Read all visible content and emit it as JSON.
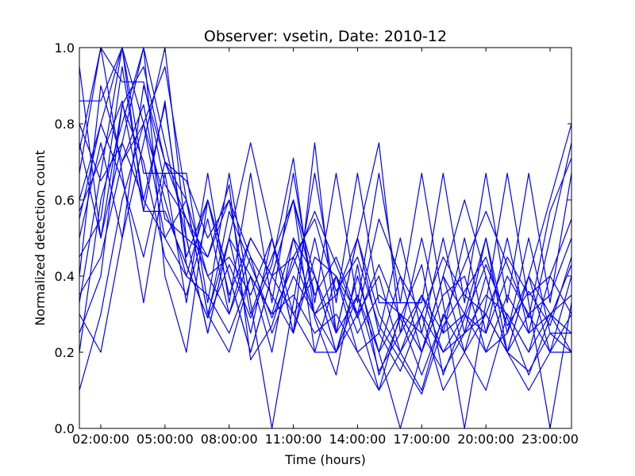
{
  "chart_data": {
    "type": "line",
    "title": "Observer: vsetin, Date: 2010-12",
    "xlabel": "Time (hours)",
    "ylabel": "Normalized detection count",
    "xlim": [
      1,
      24
    ],
    "ylim": [
      0.0,
      1.0
    ],
    "xticks": [
      {
        "value": 2,
        "label": "02:00:00"
      },
      {
        "value": 5,
        "label": "05:00:00"
      },
      {
        "value": 8,
        "label": "08:00:00"
      },
      {
        "value": 11,
        "label": "11:00:00"
      },
      {
        "value": 14,
        "label": "14:00:00"
      },
      {
        "value": 17,
        "label": "17:00:00"
      },
      {
        "value": 20,
        "label": "20:00:00"
      },
      {
        "value": 23,
        "label": "23:00:00"
      }
    ],
    "yticks": [
      {
        "value": 0.0,
        "label": "0.0"
      },
      {
        "value": 0.2,
        "label": "0.2"
      },
      {
        "value": 0.4,
        "label": "0.4"
      },
      {
        "value": 0.6,
        "label": "0.6"
      },
      {
        "value": 0.8,
        "label": "0.8"
      },
      {
        "value": 1.0,
        "label": "1.0"
      }
    ],
    "grid": false,
    "line_color": "#0000ff",
    "x": [
      1,
      2,
      3,
      4,
      5,
      6,
      7,
      8,
      9,
      10,
      11,
      12,
      13,
      14,
      15,
      16,
      17,
      18,
      19,
      20,
      21,
      22,
      23,
      24
    ],
    "series": [
      {
        "values": [
          0.73,
          1.0,
          0.91,
          0.91,
          0.64,
          0.55,
          0.45,
          0.64,
          0.18,
          0.27,
          0.45,
          0.55,
          0.36,
          0.45,
          0.27,
          0.18,
          0.09,
          0.27,
          0.36,
          0.45,
          0.27,
          0.36,
          0.27,
          0.45
        ]
      },
      {
        "values": [
          0.86,
          0.86,
          1.0,
          0.57,
          0.86,
          0.43,
          0.29,
          0.43,
          0.29,
          0.43,
          0.71,
          0.29,
          0.14,
          0.43,
          0.14,
          0.29,
          0.43,
          0.14,
          0.29,
          0.43,
          0.29,
          0.14,
          0.29,
          0.43
        ]
      },
      {
        "values": [
          0.5,
          0.75,
          0.5,
          0.75,
          1.0,
          0.5,
          0.25,
          0.5,
          0.25,
          0.5,
          0.25,
          0.75,
          0.25,
          0.5,
          0.25,
          0.5,
          0.25,
          0.5,
          0.25,
          0.5,
          0.25,
          0.5,
          0.25,
          0.25
        ]
      },
      {
        "values": [
          0.33,
          0.67,
          1.0,
          0.67,
          0.67,
          0.33,
          0.67,
          0.33,
          0.67,
          0.33,
          0.67,
          0.33,
          0.67,
          0.33,
          0.67,
          0.33,
          0.33,
          0.67,
          0.33,
          0.67,
          0.33,
          0.67,
          0.33,
          0.67
        ]
      },
      {
        "values": [
          0.6,
          0.8,
          1.0,
          0.8,
          0.6,
          0.4,
          0.6,
          0.4,
          0.2,
          0.4,
          0.6,
          0.4,
          0.2,
          0.4,
          0.2,
          0.4,
          0.2,
          0.4,
          0.6,
          0.4,
          0.2,
          0.4,
          0.6,
          0.8
        ]
      },
      {
        "values": [
          0.4,
          0.9,
          0.7,
          0.8,
          0.5,
          0.6,
          0.3,
          0.5,
          0.4,
          0.2,
          0.5,
          0.3,
          0.4,
          0.2,
          0.1,
          0.3,
          0.2,
          0.4,
          0.3,
          0.5,
          0.2,
          0.3,
          0.2,
          0.4
        ]
      },
      {
        "values": [
          0.2,
          0.6,
          0.8,
          1.0,
          0.4,
          0.2,
          0.6,
          0.4,
          0.2,
          0.4,
          0.6,
          0.2,
          0.2,
          0.4,
          0.2,
          0.0,
          0.2,
          0.4,
          0.2,
          0.4,
          0.2,
          0.4,
          0.2,
          0.2
        ]
      },
      {
        "values": [
          0.95,
          0.5,
          0.85,
          0.7,
          0.45,
          0.35,
          0.55,
          0.3,
          0.45,
          0.25,
          0.4,
          0.3,
          0.2,
          0.35,
          0.15,
          0.25,
          0.35,
          0.2,
          0.3,
          0.2,
          0.35,
          0.25,
          0.3,
          0.35
        ]
      },
      {
        "values": [
          0.57,
          0.71,
          0.86,
          0.57,
          0.57,
          0.43,
          0.29,
          0.57,
          0.43,
          0.29,
          0.43,
          0.57,
          0.43,
          0.29,
          0.43,
          0.29,
          0.14,
          0.29,
          0.43,
          0.57,
          0.43,
          0.29,
          0.57,
          0.71
        ]
      },
      {
        "values": [
          0.75,
          0.5,
          0.75,
          1.0,
          0.75,
          0.5,
          0.25,
          0.5,
          0.75,
          0.5,
          0.25,
          0.5,
          0.25,
          0.5,
          0.75,
          0.25,
          0.5,
          0.25,
          0.5,
          0.25,
          0.5,
          0.25,
          0.5,
          0.75
        ]
      },
      {
        "values": [
          0.3,
          0.2,
          0.5,
          0.9,
          0.7,
          0.6,
          0.4,
          0.3,
          0.5,
          0.4,
          0.3,
          0.2,
          0.4,
          0.3,
          0.1,
          0.2,
          0.3,
          0.1,
          0.2,
          0.3,
          0.2,
          0.1,
          0.2,
          0.3
        ]
      },
      {
        "values": [
          0.67,
          1.0,
          0.67,
          0.33,
          0.67,
          0.67,
          0.33,
          0.67,
          0.33,
          0.0,
          0.33,
          0.67,
          0.33,
          0.67,
          0.33,
          0.33,
          0.67,
          0.33,
          0.0,
          0.33,
          0.67,
          0.33,
          0.0,
          0.33
        ]
      },
      {
        "values": [
          0.45,
          0.55,
          0.95,
          0.6,
          0.5,
          0.4,
          0.35,
          0.25,
          0.4,
          0.3,
          0.35,
          0.25,
          0.3,
          0.2,
          0.25,
          0.15,
          0.3,
          0.2,
          0.25,
          0.3,
          0.2,
          0.15,
          0.25,
          0.2
        ]
      },
      {
        "values": [
          0.25,
          0.4,
          0.85,
          0.95,
          0.7,
          0.55,
          0.4,
          0.45,
          0.35,
          0.5,
          0.3,
          0.4,
          0.25,
          0.35,
          0.2,
          0.3,
          0.25,
          0.15,
          0.25,
          0.35,
          0.3,
          0.2,
          0.3,
          0.25
        ]
      },
      {
        "values": [
          0.8,
          0.65,
          0.75,
          0.6,
          0.85,
          0.45,
          0.6,
          0.35,
          0.5,
          0.4,
          0.45,
          0.3,
          0.35,
          0.5,
          0.3,
          0.2,
          0.35,
          0.25,
          0.3,
          0.25,
          0.4,
          0.3,
          0.35,
          0.5
        ]
      },
      {
        "values": [
          0.1,
          0.3,
          0.6,
          0.8,
          0.95,
          0.6,
          0.3,
          0.2,
          0.4,
          0.3,
          0.5,
          0.4,
          0.2,
          0.3,
          0.4,
          0.2,
          0.1,
          0.3,
          0.2,
          0.1,
          0.3,
          0.2,
          0.4,
          0.3
        ]
      },
      {
        "values": [
          0.55,
          0.8,
          0.65,
          0.45,
          0.7,
          0.65,
          0.5,
          0.6,
          0.3,
          0.45,
          0.6,
          0.35,
          0.45,
          0.3,
          0.55,
          0.4,
          0.3,
          0.45,
          0.35,
          0.3,
          0.45,
          0.35,
          0.4,
          0.55
        ]
      },
      {
        "values": [
          0.35,
          0.45,
          0.7,
          0.85,
          0.55,
          0.5,
          0.45,
          0.6,
          0.45,
          0.35,
          0.25,
          0.45,
          0.4,
          0.25,
          0.35,
          0.3,
          0.2,
          0.35,
          0.4,
          0.2,
          0.25,
          0.4,
          0.3,
          0.2
        ]
      }
    ]
  }
}
